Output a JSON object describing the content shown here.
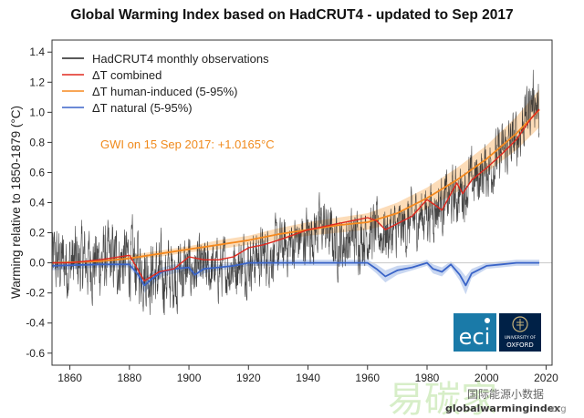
{
  "chart_data": {
    "type": "line",
    "title": "Global Warming Index based on HadCRUT4 - updated to Sep 2017",
    "ylabel": "Warming relative to 1850-1879 (°C)",
    "xlabel": "",
    "xlim": [
      1854,
      2022
    ],
    "ylim": [
      -0.68,
      1.48
    ],
    "xticks": [
      1860,
      1880,
      1900,
      1920,
      1940,
      1960,
      1980,
      2000,
      2020
    ],
    "yticks": [
      -0.6,
      -0.4,
      -0.2,
      0.0,
      0.2,
      0.4,
      0.6,
      0.8,
      1.0,
      1.2,
      1.4
    ],
    "legend_position": "top-left",
    "grid": false,
    "annotation": {
      "text": "GWI on 15 Sep 2017: +1.0165°C",
      "color": "#f08a1c"
    },
    "series": [
      {
        "name": "HadCRUT4 monthly observations",
        "color": "#222222",
        "kind": "noisy-monthly",
        "x": [
          1854,
          1860,
          1870,
          1880,
          1890,
          1900,
          1910,
          1920,
          1930,
          1940,
          1945,
          1950,
          1960,
          1970,
          1980,
          1990,
          2000,
          2010,
          2016,
          2017.7
        ],
        "y": [
          0.0,
          0.0,
          0.01,
          0.02,
          -0.1,
          -0.05,
          -0.05,
          0.02,
          0.08,
          0.18,
          0.25,
          0.12,
          0.2,
          0.2,
          0.34,
          0.45,
          0.62,
          0.82,
          1.12,
          0.95
        ],
        "spread": 0.15
      },
      {
        "name": "ΔT combined",
        "color": "#e0281e",
        "x": [
          1854,
          1860,
          1870,
          1880,
          1883,
          1885,
          1890,
          1895,
          1900,
          1905,
          1910,
          1915,
          1920,
          1925,
          1930,
          1940,
          1950,
          1960,
          1963,
          1966,
          1970,
          1975,
          1980,
          1983,
          1985,
          1990,
          1992,
          1995,
          2000,
          2005,
          2010,
          2015,
          2017.7
        ],
        "y": [
          0.0,
          0.0,
          0.02,
          0.05,
          -0.05,
          -0.12,
          -0.06,
          -0.04,
          0.04,
          0.02,
          0.02,
          0.04,
          0.1,
          0.12,
          0.15,
          0.22,
          0.26,
          0.3,
          0.28,
          0.22,
          0.26,
          0.31,
          0.42,
          0.38,
          0.35,
          0.53,
          0.46,
          0.55,
          0.63,
          0.72,
          0.82,
          0.96,
          1.02
        ]
      },
      {
        "name": "ΔT human-induced (5-95%)",
        "color": "#f5891e",
        "band_color": "#fbd3a6",
        "x": [
          1854,
          1870,
          1880,
          1890,
          1900,
          1910,
          1920,
          1930,
          1940,
          1950,
          1960,
          1970,
          1980,
          1990,
          2000,
          2010,
          2017.7
        ],
        "y": [
          0.0,
          0.01,
          0.03,
          0.06,
          0.09,
          0.12,
          0.15,
          0.19,
          0.22,
          0.25,
          0.27,
          0.33,
          0.43,
          0.55,
          0.69,
          0.86,
          1.0165
        ],
        "lower": [
          0.0,
          0.0,
          0.02,
          0.04,
          0.07,
          0.09,
          0.12,
          0.15,
          0.18,
          0.2,
          0.22,
          0.27,
          0.36,
          0.47,
          0.6,
          0.75,
          0.9
        ],
        "upper": [
          0.0,
          0.02,
          0.05,
          0.08,
          0.11,
          0.15,
          0.18,
          0.23,
          0.27,
          0.3,
          0.33,
          0.4,
          0.5,
          0.63,
          0.78,
          0.97,
          1.15
        ]
      },
      {
        "name": "ΔT natural (5-95%)",
        "color": "#3a64c8",
        "band_color": "#bccdee",
        "x": [
          1854,
          1870,
          1880,
          1883,
          1885,
          1888,
          1891,
          1895,
          1900,
          1902,
          1905,
          1910,
          1915,
          1920,
          1930,
          1940,
          1950,
          1960,
          1963,
          1966,
          1970,
          1975,
          1980,
          1982,
          1985,
          1988,
          1991,
          1993,
          1995,
          2000,
          2005,
          2010,
          2017.7
        ],
        "y": [
          -0.02,
          -0.01,
          -0.01,
          -0.08,
          -0.15,
          -0.1,
          -0.06,
          -0.04,
          -0.03,
          -0.08,
          -0.04,
          -0.03,
          -0.02,
          0.0,
          0.0,
          0.0,
          0.0,
          0.0,
          -0.04,
          -0.09,
          -0.05,
          -0.03,
          0.0,
          -0.04,
          -0.06,
          -0.01,
          -0.08,
          -0.15,
          -0.07,
          -0.02,
          -0.01,
          0.0,
          0.0
        ],
        "lower": [
          -0.05,
          -0.03,
          -0.03,
          -0.11,
          -0.2,
          -0.14,
          -0.09,
          -0.07,
          -0.05,
          -0.11,
          -0.07,
          -0.05,
          -0.04,
          -0.02,
          -0.02,
          -0.02,
          -0.02,
          -0.02,
          -0.07,
          -0.13,
          -0.08,
          -0.05,
          -0.02,
          -0.07,
          -0.09,
          -0.03,
          -0.12,
          -0.21,
          -0.1,
          -0.04,
          -0.03,
          -0.02,
          -0.02
        ],
        "upper": [
          0.01,
          0.01,
          0.01,
          -0.05,
          -0.1,
          -0.06,
          -0.03,
          -0.01,
          -0.01,
          -0.05,
          -0.01,
          -0.01,
          0.0,
          0.02,
          0.02,
          0.02,
          0.02,
          0.02,
          -0.01,
          -0.05,
          -0.02,
          -0.01,
          0.02,
          -0.01,
          -0.03,
          0.01,
          -0.04,
          -0.09,
          -0.04,
          0.0,
          0.01,
          0.02,
          0.02
        ]
      }
    ]
  },
  "logos": {
    "eci": {
      "text": "eci",
      "color": "#1a7aa8"
    },
    "oxford": {
      "line1": "UNIVERSITY OF",
      "line2": "OXFORD",
      "color": "#002147"
    }
  },
  "watermark": {
    "brand": "globalwarmingindex",
    "suffix": ".org",
    "cjk_text": "国际能源小数据"
  }
}
